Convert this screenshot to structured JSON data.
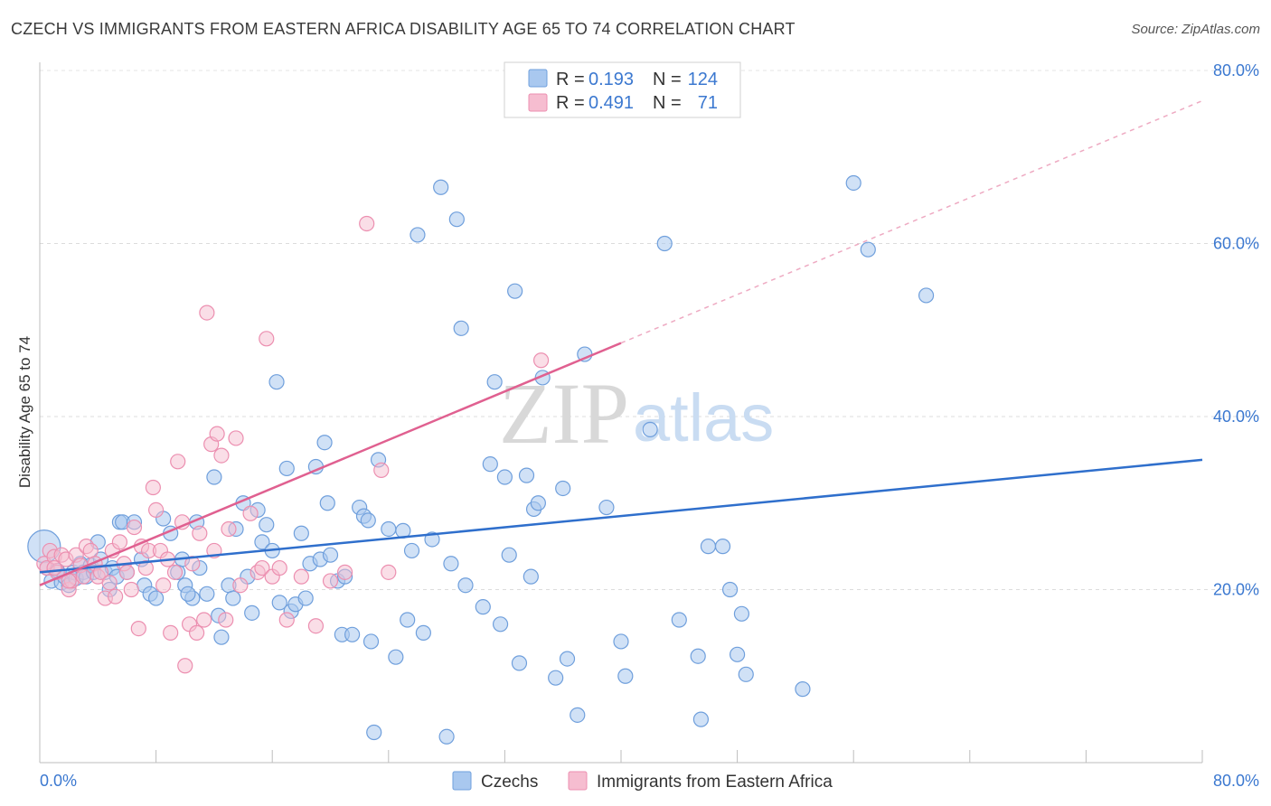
{
  "title": "CZECH VS IMMIGRANTS FROM EASTERN AFRICA DISABILITY AGE 65 TO 74 CORRELATION CHART",
  "source": "Source: ZipAtlas.com",
  "watermark": {
    "zip": "ZIP",
    "atlas": "atlas"
  },
  "chart_data": {
    "type": "scatter",
    "xlabel": "",
    "ylabel": "Disability Age 65 to 74",
    "xlim": [
      0,
      80
    ],
    "ylim": [
      0,
      80
    ],
    "x_tick_labels": [
      "0.0%",
      "80.0%"
    ],
    "y_tick_labels": [
      "20.0%",
      "40.0%",
      "60.0%",
      "80.0%"
    ],
    "y_ticks": [
      20,
      40,
      60,
      80
    ],
    "grid": true,
    "legend": {
      "placement": "top-center",
      "rows": [
        {
          "r_label": "R =",
          "r_value": "0.193",
          "n_label": "N =",
          "n_value": "124"
        },
        {
          "r_label": "R =",
          "r_value": "0.491",
          "n_label": "N =",
          "n_value": "71"
        }
      ]
    },
    "colors": {
      "czechs_fill": "#a9c8ef",
      "czechs_stroke": "#6f9fdc",
      "czechs_line": "#2f6fcc",
      "immigrants_fill": "#f6bdd0",
      "immigrants_stroke": "#ec8fb0",
      "immigrants_line": "#e06090",
      "value_text": "#3b78d0"
    },
    "series": [
      {
        "name": "Czechs",
        "trend": {
          "x": [
            0,
            80
          ],
          "y": [
            22.0,
            35.0
          ],
          "dashed_to": null
        },
        "points": [
          [
            0.3,
            25.0
          ],
          [
            0.5,
            22.5
          ],
          [
            0.8,
            21.0
          ],
          [
            1.2,
            22.2
          ],
          [
            1.5,
            20.8
          ],
          [
            1.7,
            21.5
          ],
          [
            2.0,
            20.5
          ],
          [
            2.3,
            22.0
          ],
          [
            2.5,
            21.3
          ],
          [
            2.8,
            23.0
          ],
          [
            3.0,
            22.0
          ],
          [
            3.2,
            21.5
          ],
          [
            3.5,
            22.8
          ],
          [
            3.7,
            22.0
          ],
          [
            4.0,
            25.5
          ],
          [
            4.2,
            23.5
          ],
          [
            4.5,
            22.0
          ],
          [
            4.8,
            20.0
          ],
          [
            5.0,
            22.5
          ],
          [
            5.3,
            21.5
          ],
          [
            5.5,
            27.8
          ],
          [
            5.7,
            27.8
          ],
          [
            6.0,
            22.0
          ],
          [
            6.5,
            27.8
          ],
          [
            7.0,
            23.5
          ],
          [
            7.2,
            20.5
          ],
          [
            7.6,
            19.5
          ],
          [
            8.0,
            19.0
          ],
          [
            8.5,
            28.2
          ],
          [
            9.0,
            26.5
          ],
          [
            9.5,
            22.0
          ],
          [
            9.8,
            23.5
          ],
          [
            10.0,
            20.5
          ],
          [
            10.5,
            19.0
          ],
          [
            10.8,
            27.8
          ],
          [
            11.0,
            22.5
          ],
          [
            11.5,
            19.5
          ],
          [
            12.0,
            33.0
          ],
          [
            12.3,
            17.0
          ],
          [
            12.5,
            14.5
          ],
          [
            13.0,
            20.5
          ],
          [
            13.3,
            19.0
          ],
          [
            13.5,
            27.0
          ],
          [
            14.0,
            30.0
          ],
          [
            14.3,
            21.5
          ],
          [
            14.6,
            17.3
          ],
          [
            15.0,
            29.2
          ],
          [
            15.3,
            25.5
          ],
          [
            15.6,
            27.5
          ],
          [
            16.0,
            24.5
          ],
          [
            16.3,
            44.0
          ],
          [
            16.5,
            18.5
          ],
          [
            17.0,
            34.0
          ],
          [
            17.3,
            17.5
          ],
          [
            17.6,
            18.3
          ],
          [
            18.0,
            26.5
          ],
          [
            18.3,
            19.0
          ],
          [
            18.6,
            23.0
          ],
          [
            19.0,
            34.2
          ],
          [
            19.3,
            23.5
          ],
          [
            19.6,
            37.0
          ],
          [
            19.8,
            30.0
          ],
          [
            20.0,
            24.0
          ],
          [
            20.5,
            21.0
          ],
          [
            20.8,
            14.8
          ],
          [
            21.0,
            21.5
          ],
          [
            21.5,
            14.8
          ],
          [
            22.0,
            29.5
          ],
          [
            22.3,
            28.5
          ],
          [
            22.6,
            28.0
          ],
          [
            22.8,
            14.0
          ],
          [
            23.3,
            35.0
          ],
          [
            24.0,
            27.0
          ],
          [
            24.5,
            12.2
          ],
          [
            25.0,
            26.8
          ],
          [
            25.3,
            16.5
          ],
          [
            25.6,
            24.5
          ],
          [
            26.0,
            61.0
          ],
          [
            26.4,
            15.0
          ],
          [
            27.0,
            25.8
          ],
          [
            27.6,
            66.5
          ],
          [
            28.0,
            3.0
          ],
          [
            28.3,
            23.0
          ],
          [
            28.7,
            62.8
          ],
          [
            29.0,
            50.2
          ],
          [
            29.3,
            20.5
          ],
          [
            30.5,
            18.0
          ],
          [
            31.0,
            34.5
          ],
          [
            31.3,
            44.0
          ],
          [
            31.7,
            16.0
          ],
          [
            32.0,
            33.0
          ],
          [
            32.3,
            24.0
          ],
          [
            32.7,
            54.5
          ],
          [
            33.0,
            11.5
          ],
          [
            33.5,
            33.2
          ],
          [
            33.8,
            21.5
          ],
          [
            34.0,
            29.3
          ],
          [
            34.3,
            30.0
          ],
          [
            34.6,
            44.5
          ],
          [
            35.5,
            9.8
          ],
          [
            36.0,
            31.7
          ],
          [
            36.3,
            12.0
          ],
          [
            37.0,
            5.5
          ],
          [
            37.5,
            47.2
          ],
          [
            39.0,
            29.5
          ],
          [
            40.0,
            14.0
          ],
          [
            40.3,
            10.0
          ],
          [
            42.0,
            38.5
          ],
          [
            43.0,
            60.0
          ],
          [
            44.0,
            16.5
          ],
          [
            45.3,
            12.3
          ],
          [
            45.5,
            5.0
          ],
          [
            46.0,
            25.0
          ],
          [
            47.0,
            25.0
          ],
          [
            47.5,
            20.0
          ],
          [
            48.0,
            12.5
          ],
          [
            48.3,
            17.2
          ],
          [
            48.6,
            10.2
          ],
          [
            52.5,
            8.5
          ],
          [
            56.0,
            67.0
          ],
          [
            57.0,
            59.3
          ],
          [
            61.0,
            54.0
          ],
          [
            23.0,
            3.5
          ],
          [
            10.2,
            19.5
          ]
        ]
      },
      {
        "name": "Immigrants from Eastern Africa",
        "trend": {
          "x": [
            0,
            40
          ],
          "y": [
            20.5,
            48.5
          ],
          "dashed_to": [
            80,
            76.5
          ]
        },
        "points": [
          [
            0.3,
            23.0
          ],
          [
            0.5,
            22.5
          ],
          [
            0.7,
            24.5
          ],
          [
            1.0,
            23.8
          ],
          [
            1.2,
            22.0
          ],
          [
            1.5,
            24.0
          ],
          [
            1.8,
            23.5
          ],
          [
            2.0,
            20.0
          ],
          [
            2.2,
            21.0
          ],
          [
            2.5,
            24.0
          ],
          [
            2.8,
            22.8
          ],
          [
            3.0,
            21.5
          ],
          [
            3.2,
            25.0
          ],
          [
            3.5,
            24.5
          ],
          [
            3.8,
            23.0
          ],
          [
            4.0,
            21.5
          ],
          [
            4.2,
            22.0
          ],
          [
            4.5,
            19.0
          ],
          [
            4.8,
            20.8
          ],
          [
            5.0,
            24.5
          ],
          [
            5.2,
            19.2
          ],
          [
            5.5,
            25.5
          ],
          [
            5.8,
            23.0
          ],
          [
            6.0,
            22.0
          ],
          [
            6.3,
            20.0
          ],
          [
            6.5,
            27.2
          ],
          [
            6.8,
            15.5
          ],
          [
            7.0,
            25.0
          ],
          [
            7.3,
            22.5
          ],
          [
            7.5,
            24.5
          ],
          [
            7.8,
            31.8
          ],
          [
            8.0,
            29.2
          ],
          [
            8.3,
            24.5
          ],
          [
            8.5,
            20.5
          ],
          [
            8.8,
            23.5
          ],
          [
            9.0,
            15.0
          ],
          [
            9.3,
            22.0
          ],
          [
            9.5,
            34.8
          ],
          [
            9.8,
            27.8
          ],
          [
            10.0,
            11.2
          ],
          [
            10.3,
            16.0
          ],
          [
            10.5,
            23.0
          ],
          [
            10.8,
            15.0
          ],
          [
            11.0,
            26.5
          ],
          [
            11.3,
            16.5
          ],
          [
            11.5,
            52.0
          ],
          [
            11.8,
            36.8
          ],
          [
            12.0,
            24.5
          ],
          [
            12.2,
            38.0
          ],
          [
            12.5,
            35.5
          ],
          [
            12.8,
            16.5
          ],
          [
            13.0,
            27.0
          ],
          [
            13.5,
            37.5
          ],
          [
            13.8,
            20.5
          ],
          [
            14.5,
            28.8
          ],
          [
            15.0,
            22.0
          ],
          [
            15.3,
            22.5
          ],
          [
            15.6,
            49.0
          ],
          [
            16.0,
            21.5
          ],
          [
            16.5,
            22.5
          ],
          [
            17.0,
            16.5
          ],
          [
            18.0,
            21.5
          ],
          [
            19.0,
            15.8
          ],
          [
            20.0,
            21.0
          ],
          [
            21.0,
            22.0
          ],
          [
            22.5,
            62.3
          ],
          [
            23.5,
            33.8
          ],
          [
            24.0,
            22.0
          ],
          [
            34.5,
            46.5
          ],
          [
            1.0,
            22.5
          ],
          [
            2.0,
            21.0
          ]
        ]
      }
    ]
  },
  "bottom_legend": [
    {
      "label": "Czechs"
    },
    {
      "label": "Immigrants from Eastern Africa"
    }
  ]
}
